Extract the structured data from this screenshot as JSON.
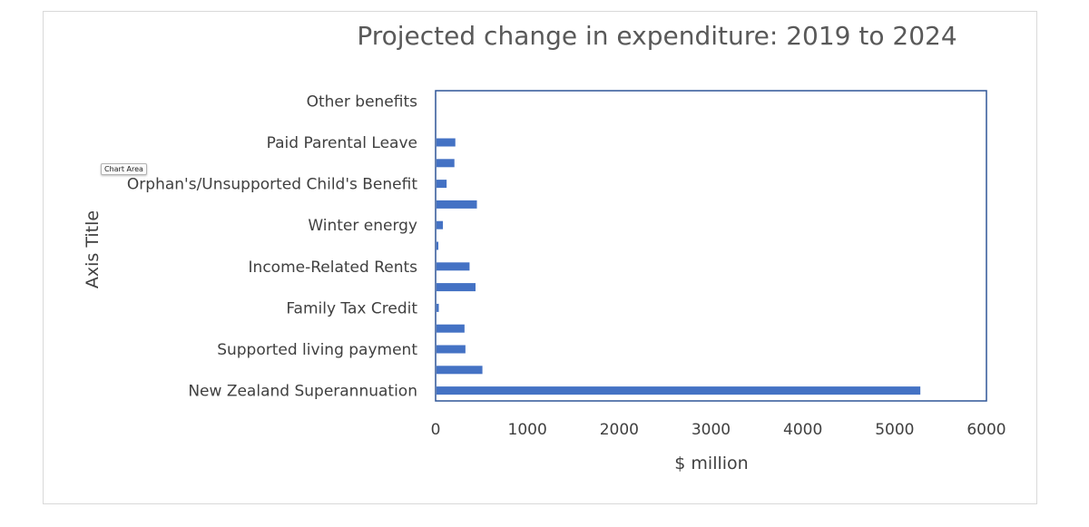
{
  "tooltip": {
    "label": "Chart Area"
  },
  "colors": {
    "bar": "#4472C4",
    "plot_border": "#2F5597",
    "text": "#404040",
    "title": "#595959"
  },
  "chart_data": {
    "type": "bar",
    "orientation": "horizontal",
    "title": "Projected change in expenditure: 2019 to 2024",
    "xlabel": "$ million",
    "ylabel": "Axis Title",
    "xlim": [
      0,
      6000
    ],
    "x_ticks": [
      0,
      1000,
      2000,
      3000,
      4000,
      5000,
      6000
    ],
    "grid": false,
    "legend": "none",
    "categories": [
      "New Zealand Superannuation",
      "",
      "Supported living payment",
      "",
      "Family Tax Credit",
      "",
      "Income-Related Rents",
      "",
      "Winter energy",
      "",
      "Orphan's/Unsupported Child's Benefit",
      "",
      "Paid Parental Leave",
      "",
      "Other benefits"
    ],
    "values": [
      5270,
      500,
      315,
      305,
      25,
      425,
      360,
      20,
      70,
      440,
      110,
      195,
      205,
      0,
      0
    ]
  }
}
